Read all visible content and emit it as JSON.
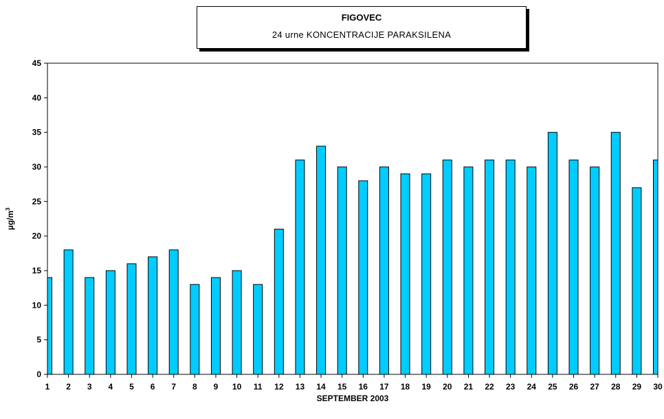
{
  "chart_data": {
    "type": "bar",
    "title": "FIGOVEC",
    "subtitle": "24 urne KONCENTRACIJE PARAKSILENA",
    "xlabel": "SEPTEMBER 2003",
    "ylabel": "µg/m",
    "ylabel_superscript": "3",
    "ylim": [
      0,
      45
    ],
    "yticks": [
      0,
      5,
      10,
      15,
      20,
      25,
      30,
      35,
      40,
      45
    ],
    "categories": [
      "1",
      "2",
      "3",
      "4",
      "5",
      "6",
      "7",
      "8",
      "9",
      "10",
      "11",
      "12",
      "13",
      "14",
      "15",
      "16",
      "17",
      "18",
      "19",
      "20",
      "21",
      "22",
      "23",
      "24",
      "25",
      "26",
      "27",
      "28",
      "29",
      "30"
    ],
    "values": [
      14,
      18,
      14,
      15,
      16,
      17,
      18,
      13,
      14,
      15,
      13,
      21,
      31,
      33,
      30,
      28,
      30,
      29,
      29,
      31,
      30,
      31,
      31,
      30,
      35,
      31,
      30,
      35,
      27,
      31
    ],
    "bar_color": "#00ccff",
    "grid": false
  }
}
